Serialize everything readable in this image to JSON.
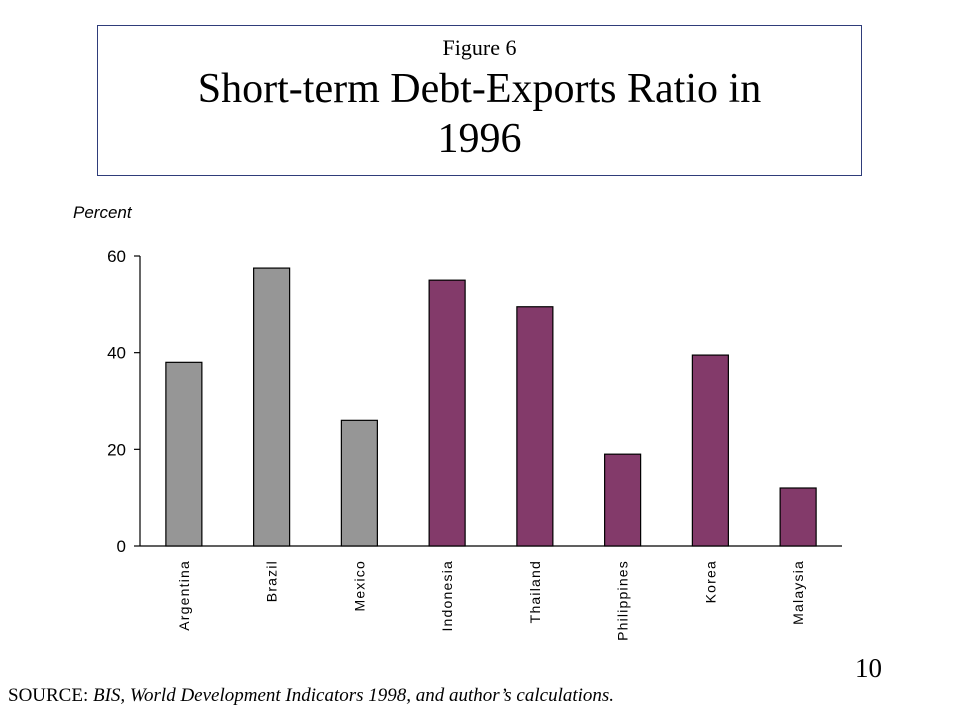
{
  "header": {
    "figure_label": "Figure 6",
    "title_line1": "Short-term Debt-Exports Ratio in",
    "title_line2": "1996"
  },
  "chart_data": {
    "type": "bar",
    "ylabel": "Percent",
    "ylim": [
      0,
      60
    ],
    "yticks": [
      0,
      20,
      40,
      60
    ],
    "categories": [
      "Argentina",
      "Brazil",
      "Mexico",
      "Indonesia",
      "Thailand",
      "Philippines",
      "Korea",
      "Malaysia"
    ],
    "values": [
      38,
      57.5,
      26,
      55,
      49.5,
      19,
      39.5,
      12
    ],
    "bar_colors": [
      "#969696",
      "#969696",
      "#969696",
      "#833a6a",
      "#833a6a",
      "#833a6a",
      "#833a6a",
      "#833a6a"
    ],
    "grid": false
  },
  "footer": {
    "page_number": "10",
    "source_prefix": "SOURCE: ",
    "source_text": "BIS, World Development Indicators 1998, and author’s calculations."
  }
}
